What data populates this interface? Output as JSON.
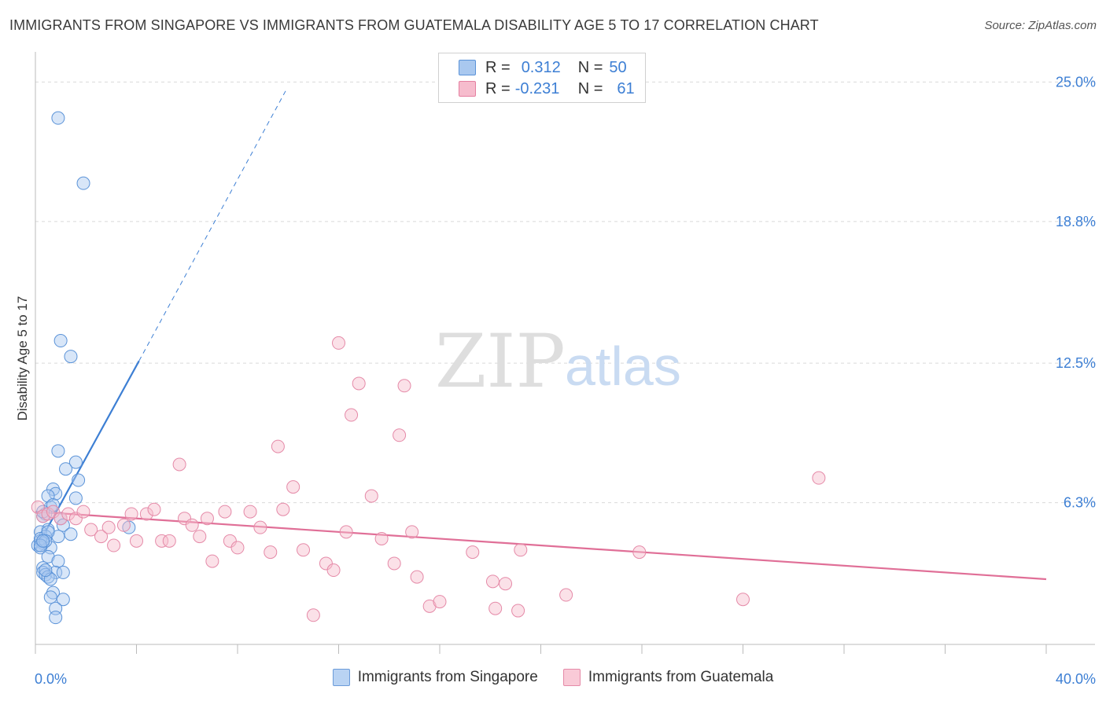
{
  "title": "IMMIGRANTS FROM SINGAPORE VS IMMIGRANTS FROM GUATEMALA DISABILITY AGE 5 TO 17 CORRELATION CHART",
  "source": "Source: ZipAtlas.com",
  "watermark": {
    "zip": "ZIP",
    "atlas": "atlas"
  },
  "legend": {
    "rows": [
      {
        "r_label": "R =",
        "r_value": "0.312",
        "n_label": "N =",
        "n_value": "50",
        "color": "#a9c8ef",
        "border": "#5b93d8"
      },
      {
        "r_label": "R =",
        "r_value": "-0.231",
        "n_label": "N =",
        "n_value": "61",
        "color": "#f6bccd",
        "border": "#e57fa0"
      }
    ]
  },
  "bottom_legend": [
    {
      "label": "Immigrants from Singapore",
      "color": "#b9d3f3",
      "border": "#6b9bd9"
    },
    {
      "label": "Immigrants from Guatemala",
      "color": "#f9cad7",
      "border": "#e58aa8"
    }
  ],
  "chart_data": {
    "type": "scatter",
    "xlabel": "",
    "ylabel": "Disability Age 5 to 17",
    "xlim": [
      0,
      40
    ],
    "ylim": [
      0,
      26.2
    ],
    "x_tick_labels": [
      "0.0%",
      "40.0%"
    ],
    "y_ticks": [
      6.3,
      12.5,
      18.8,
      25.0
    ],
    "y_tick_labels": [
      "6.3%",
      "12.5%",
      "18.8%",
      "25.0%"
    ],
    "grid": "horizontal-dashed",
    "colors": {
      "singapore": "#3d7fd4",
      "guatemala": "#e06f97",
      "tick_text": "#3d7fd4"
    },
    "series": [
      {
        "name": "Immigrants from Singapore",
        "points": [
          [
            0.9,
            23.4
          ],
          [
            1.9,
            20.5
          ],
          [
            1.0,
            13.5
          ],
          [
            1.4,
            12.8
          ],
          [
            0.9,
            8.6
          ],
          [
            1.6,
            8.1
          ],
          [
            1.2,
            7.8
          ],
          [
            1.7,
            7.3
          ],
          [
            0.7,
            6.9
          ],
          [
            0.8,
            6.7
          ],
          [
            0.5,
            6.6
          ],
          [
            1.6,
            6.5
          ],
          [
            0.6,
            6.1
          ],
          [
            0.4,
            5.8
          ],
          [
            1.0,
            5.6
          ],
          [
            0.3,
            5.7
          ],
          [
            1.1,
            5.3
          ],
          [
            0.5,
            5.1
          ],
          [
            0.2,
            5.0
          ],
          [
            1.4,
            4.9
          ],
          [
            0.9,
            4.8
          ],
          [
            0.4,
            4.8
          ],
          [
            0.2,
            4.6
          ],
          [
            0.3,
            4.5
          ],
          [
            0.1,
            4.4
          ],
          [
            0.6,
            4.3
          ],
          [
            0.2,
            4.3
          ],
          [
            3.7,
            5.2
          ],
          [
            0.5,
            3.9
          ],
          [
            0.9,
            3.7
          ],
          [
            0.3,
            3.4
          ],
          [
            0.3,
            3.2
          ],
          [
            0.4,
            3.1
          ],
          [
            0.8,
            3.2
          ],
          [
            1.1,
            3.2
          ],
          [
            0.5,
            3.0
          ],
          [
            0.6,
            2.9
          ],
          [
            0.7,
            2.3
          ],
          [
            0.6,
            2.1
          ],
          [
            1.1,
            2.0
          ],
          [
            0.8,
            1.6
          ],
          [
            0.8,
            1.2
          ],
          [
            0.2,
            4.7
          ],
          [
            0.5,
            5.0
          ],
          [
            0.4,
            4.6
          ],
          [
            0.7,
            6.2
          ],
          [
            0.3,
            5.9
          ],
          [
            0.2,
            4.4
          ],
          [
            0.4,
            3.3
          ],
          [
            0.3,
            4.6
          ]
        ],
        "trend": {
          "solid": [
            [
              0.0,
              4.2
            ],
            [
              4.1,
              12.6
            ]
          ],
          "dashed": [
            [
              4.1,
              12.6
            ],
            [
              9.9,
              24.6
            ]
          ]
        }
      },
      {
        "name": "Immigrants from Guatemala",
        "points": [
          [
            0.1,
            6.1
          ],
          [
            0.3,
            5.7
          ],
          [
            0.5,
            5.8
          ],
          [
            0.7,
            5.9
          ],
          [
            1.0,
            5.6
          ],
          [
            1.3,
            5.8
          ],
          [
            1.6,
            5.6
          ],
          [
            1.9,
            5.9
          ],
          [
            2.2,
            5.1
          ],
          [
            2.6,
            4.8
          ],
          [
            2.9,
            5.2
          ],
          [
            3.1,
            4.4
          ],
          [
            3.5,
            5.3
          ],
          [
            3.8,
            5.8
          ],
          [
            4.0,
            4.6
          ],
          [
            4.4,
            5.8
          ],
          [
            4.7,
            6.0
          ],
          [
            5.0,
            4.6
          ],
          [
            5.3,
            4.6
          ],
          [
            5.7,
            8.0
          ],
          [
            5.9,
            5.6
          ],
          [
            6.2,
            5.3
          ],
          [
            6.5,
            4.8
          ],
          [
            6.8,
            5.6
          ],
          [
            7.0,
            3.7
          ],
          [
            7.5,
            5.9
          ],
          [
            7.7,
            4.6
          ],
          [
            8.0,
            4.3
          ],
          [
            8.5,
            5.9
          ],
          [
            8.9,
            5.2
          ],
          [
            9.3,
            4.1
          ],
          [
            9.6,
            8.8
          ],
          [
            9.8,
            6.0
          ],
          [
            10.2,
            7.0
          ],
          [
            10.6,
            4.2
          ],
          [
            11.0,
            1.3
          ],
          [
            11.5,
            3.6
          ],
          [
            11.8,
            3.3
          ],
          [
            12.3,
            5.0
          ],
          [
            12.0,
            13.4
          ],
          [
            12.8,
            11.6
          ],
          [
            12.5,
            10.2
          ],
          [
            13.3,
            6.6
          ],
          [
            13.7,
            4.7
          ],
          [
            14.6,
            11.5
          ],
          [
            14.4,
            9.3
          ],
          [
            14.2,
            3.6
          ],
          [
            14.9,
            5.0
          ],
          [
            15.1,
            3.0
          ],
          [
            15.6,
            1.7
          ],
          [
            16.0,
            1.9
          ],
          [
            17.3,
            4.1
          ],
          [
            18.1,
            2.8
          ],
          [
            18.2,
            1.6
          ],
          [
            18.6,
            2.7
          ],
          [
            19.1,
            1.5
          ],
          [
            19.2,
            4.2
          ],
          [
            21.0,
            2.2
          ],
          [
            23.9,
            4.1
          ],
          [
            28.0,
            2.0
          ],
          [
            31.0,
            7.4
          ]
        ],
        "trend": {
          "solid": [
            [
              0.0,
              5.9
            ],
            [
              40.0,
              2.9
            ]
          ]
        }
      }
    ]
  }
}
